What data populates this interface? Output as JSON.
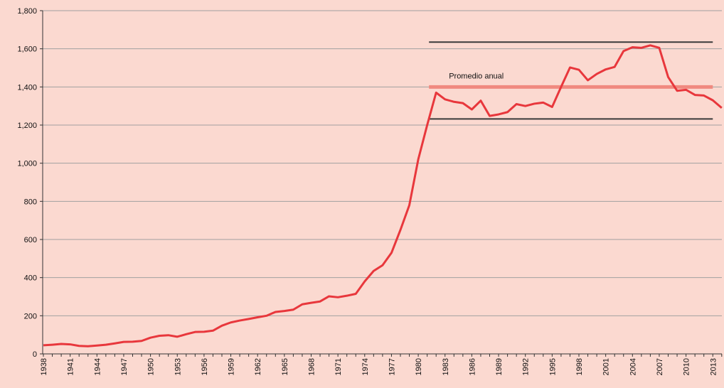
{
  "chart_data": {
    "type": "line",
    "categories": [
      "1938",
      "1939",
      "1940",
      "1941",
      "1942",
      "1943",
      "1944",
      "1945",
      "1946",
      "1947",
      "1948",
      "1949",
      "1950",
      "1951",
      "1952",
      "1953",
      "1954",
      "1955",
      "1956",
      "1957",
      "1958",
      "1959",
      "1960",
      "1961",
      "1962",
      "1963",
      "1964",
      "1965",
      "1966",
      "1967",
      "1968",
      "1969",
      "1970",
      "1971",
      "1972",
      "1973",
      "1974",
      "1975",
      "1976",
      "1977",
      "1978",
      "1979",
      "1980",
      "1981",
      "1982",
      "1983",
      "1984",
      "1985",
      "1986",
      "1987",
      "1988",
      "1989",
      "1990",
      "1991",
      "1992",
      "1993",
      "1994",
      "1995",
      "1996",
      "1997",
      "1998",
      "1999",
      "2000",
      "2001",
      "2002",
      "2003",
      "2004",
      "2005",
      "2006",
      "2007",
      "2008",
      "2009",
      "2010",
      "2011",
      "2012",
      "2013",
      "2014"
    ],
    "xtick_step": 3,
    "series": [
      {
        "color": "#e8373c",
        "values": [
          45,
          48,
          52,
          50,
          42,
          40,
          44,
          48,
          55,
          63,
          64,
          68,
          85,
          95,
          98,
          90,
          103,
          115,
          116,
          122,
          148,
          165,
          175,
          183,
          192,
          200,
          220,
          225,
          232,
          260,
          268,
          275,
          302,
          297,
          305,
          315,
          380,
          435,
          465,
          530,
          650,
          780,
          1020,
          1200,
          1370,
          1335,
          1322,
          1315,
          1282,
          1328,
          1248,
          1256,
          1268,
          1310,
          1300,
          1312,
          1318,
          1295,
          1400,
          1502,
          1490,
          1435,
          1468,
          1492,
          1505,
          1588,
          1608,
          1605,
          1618,
          1605,
          1452,
          1380,
          1385,
          1358,
          1355,
          1330,
          1290
        ]
      }
    ],
    "reference_lines": [
      {
        "value": 1635,
        "color": "#3a3a3a",
        "start": "1982",
        "end": "2013"
      },
      {
        "value": 1400,
        "color": "#f08a80",
        "start": "1982",
        "end": "2013",
        "label": "Promedio anual"
      },
      {
        "value": 1232,
        "color": "#3a3a3a",
        "start": "1982",
        "end": "2013"
      }
    ],
    "ylim": [
      0,
      1800
    ],
    "yticks": [
      0,
      200,
      400,
      600,
      800,
      {
        "value": 1000,
        "label": "1,000"
      },
      {
        "value": 1200,
        "label": "1,200"
      },
      {
        "value": 1400,
        "label": "1,400"
      },
      {
        "value": 1600,
        "label": "1,600"
      },
      {
        "value": 1800,
        "label": "1,800"
      }
    ],
    "grid": true
  }
}
